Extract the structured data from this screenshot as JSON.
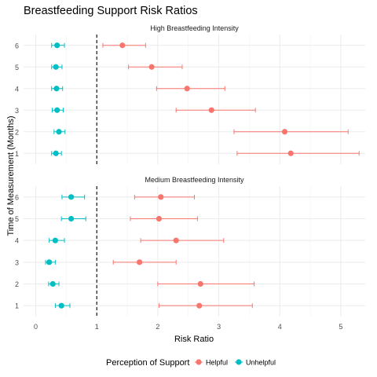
{
  "chart_data": {
    "type": "scatter",
    "title": "Breastfeeding Support Risk Ratios",
    "xlabel": "Risk Ratio",
    "ylabel": "Time of Measurement (Months)",
    "xlim": [
      -0.2,
      5.4
    ],
    "ylim": [
      0.5,
      6.5
    ],
    "x_ticks": [
      0,
      1,
      2,
      3,
      4,
      5
    ],
    "y_ticks": [
      1,
      2,
      3,
      4,
      5,
      6
    ],
    "reference_line": 1,
    "reference_line_style": "dashed",
    "grid": true,
    "legend_title": "Perception of Support",
    "legend_position": "bottom",
    "colors": {
      "Helpful": "#F8766D",
      "Unhelpful": "#00BFC4"
    },
    "panels": [
      {
        "title": "High Breastfeeding Intensity",
        "series": [
          {
            "name": "Helpful",
            "points": [
              {
                "time": 1,
                "rr": 4.18,
                "lo": 3.3,
                "hi": 5.3
              },
              {
                "time": 2,
                "rr": 4.08,
                "lo": 3.25,
                "hi": 5.12
              },
              {
                "time": 3,
                "rr": 2.88,
                "lo": 2.3,
                "hi": 3.6
              },
              {
                "time": 4,
                "rr": 2.48,
                "lo": 1.98,
                "hi": 3.1
              },
              {
                "time": 5,
                "rr": 1.9,
                "lo": 1.52,
                "hi": 2.4
              },
              {
                "time": 6,
                "rr": 1.42,
                "lo": 1.1,
                "hi": 1.8
              }
            ]
          },
          {
            "name": "Unhelpful",
            "points": [
              {
                "time": 1,
                "rr": 0.33,
                "lo": 0.26,
                "hi": 0.42
              },
              {
                "time": 2,
                "rr": 0.38,
                "lo": 0.3,
                "hi": 0.48
              },
              {
                "time": 3,
                "rr": 0.35,
                "lo": 0.27,
                "hi": 0.45
              },
              {
                "time": 4,
                "rr": 0.34,
                "lo": 0.26,
                "hi": 0.44
              },
              {
                "time": 5,
                "rr": 0.33,
                "lo": 0.26,
                "hi": 0.43
              },
              {
                "time": 6,
                "rr": 0.35,
                "lo": 0.26,
                "hi": 0.47
              }
            ]
          }
        ]
      },
      {
        "title": "Medium Breastfeeding Intensity",
        "series": [
          {
            "name": "Helpful",
            "points": [
              {
                "time": 1,
                "rr": 2.68,
                "lo": 2.02,
                "hi": 3.55
              },
              {
                "time": 2,
                "rr": 2.7,
                "lo": 2.0,
                "hi": 3.58
              },
              {
                "time": 3,
                "rr": 1.7,
                "lo": 1.27,
                "hi": 2.3
              },
              {
                "time": 4,
                "rr": 2.3,
                "lo": 1.72,
                "hi": 3.08
              },
              {
                "time": 5,
                "rr": 2.02,
                "lo": 1.55,
                "hi": 2.65
              },
              {
                "time": 6,
                "rr": 2.05,
                "lo": 1.62,
                "hi": 2.6
              }
            ]
          },
          {
            "name": "Unhelpful",
            "points": [
              {
                "time": 1,
                "rr": 0.42,
                "lo": 0.32,
                "hi": 0.56
              },
              {
                "time": 2,
                "rr": 0.28,
                "lo": 0.21,
                "hi": 0.38
              },
              {
                "time": 3,
                "rr": 0.22,
                "lo": 0.16,
                "hi": 0.32
              },
              {
                "time": 4,
                "rr": 0.32,
                "lo": 0.22,
                "hi": 0.47
              },
              {
                "time": 5,
                "rr": 0.58,
                "lo": 0.42,
                "hi": 0.82
              },
              {
                "time": 6,
                "rr": 0.58,
                "lo": 0.43,
                "hi": 0.8
              }
            ]
          }
        ]
      }
    ]
  }
}
